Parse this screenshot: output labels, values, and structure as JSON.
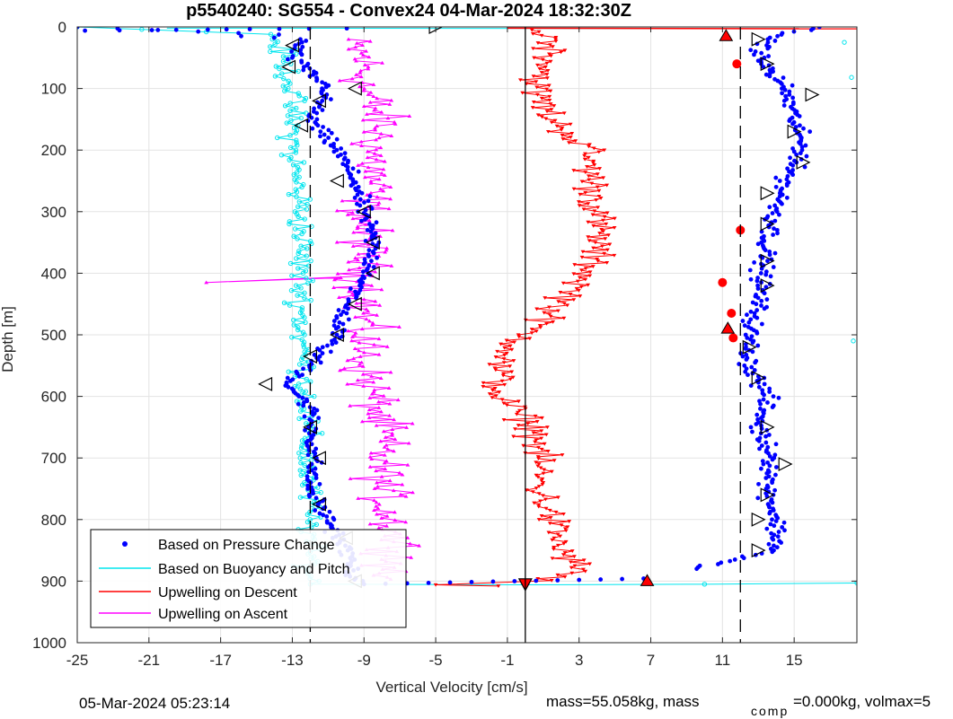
{
  "footer": {
    "timestamp": "05-Mar-2024 05:23:14",
    "mass_text": "mass=55.058kg, mass",
    "comp_sub": "comp",
    "comp_text": "=0.000kg, volmax=5"
  },
  "chart_data": {
    "type": "scatter",
    "title": "p5540240: SG554 - Convex24 04-Mar-2024 18:32:30Z",
    "xlabel": "Vertical Velocity [cm/s]",
    "ylabel": "Depth [m]",
    "xlim": [
      -25,
      18.5
    ],
    "ylim": [
      0,
      1000
    ],
    "y_reversed": true,
    "xticks": [
      -25,
      -21,
      -17,
      -13,
      -9,
      -5,
      -1,
      3,
      7,
      11,
      15
    ],
    "yticks": [
      0,
      100,
      200,
      300,
      400,
      500,
      600,
      700,
      800,
      900,
      1000
    ],
    "grid": true,
    "legend_position": "bottom-left",
    "reference_lines": {
      "solid_x": 0.0,
      "dashed_x": [
        -12,
        12
      ]
    },
    "series": [
      {
        "name": "Based on Pressure Change",
        "color": "#0000ff",
        "marker": "dot",
        "depth_profile_descent": [
          [
            0,
            -25
          ],
          [
            20,
            -12.5
          ],
          [
            50,
            -13
          ],
          [
            100,
            -11
          ],
          [
            150,
            -12
          ],
          [
            200,
            -10.5
          ],
          [
            250,
            -9.5
          ],
          [
            300,
            -9
          ],
          [
            350,
            -8.5
          ],
          [
            400,
            -8.7
          ],
          [
            450,
            -10
          ],
          [
            500,
            -10.5
          ],
          [
            550,
            -12
          ],
          [
            580,
            -13.2
          ],
          [
            620,
            -12
          ],
          [
            700,
            -11.8
          ],
          [
            750,
            -12
          ],
          [
            800,
            -11
          ],
          [
            850,
            -10
          ],
          [
            900,
            -9.5
          ]
        ],
        "depth_profile_ascent": [
          [
            900,
            6
          ],
          [
            850,
            14
          ],
          [
            800,
            14
          ],
          [
            750,
            13.5
          ],
          [
            700,
            13.8
          ],
          [
            650,
            13
          ],
          [
            600,
            13.5
          ],
          [
            550,
            12.5
          ],
          [
            500,
            12.5
          ],
          [
            450,
            13
          ],
          [
            400,
            13.2
          ],
          [
            350,
            13.5
          ],
          [
            300,
            14
          ],
          [
            250,
            14.5
          ],
          [
            200,
            15.5
          ],
          [
            150,
            15
          ],
          [
            100,
            14.5
          ],
          [
            50,
            13
          ],
          [
            20,
            13.5
          ],
          [
            0,
            16
          ]
        ]
      },
      {
        "name": "Based on Buoyancy and Pitch",
        "color": "#00e5ee",
        "marker": "circle-line",
        "depth_profile": [
          [
            0,
            -25
          ],
          [
            10,
            -14
          ],
          [
            50,
            -13.5
          ],
          [
            100,
            -13
          ],
          [
            200,
            -13
          ],
          [
            300,
            -12.5
          ],
          [
            400,
            -12.5
          ],
          [
            500,
            -12.5
          ],
          [
            600,
            -12.2
          ],
          [
            700,
            -12.2
          ],
          [
            800,
            -12
          ],
          [
            905,
            -12
          ],
          [
            905,
            5
          ],
          [
            905,
            18.5
          ]
        ]
      },
      {
        "name": "Upwelling on Descent",
        "color": "#ff0000",
        "marker": "triangle-down",
        "depth_profile": [
          [
            0,
            0.5
          ],
          [
            20,
            1.5
          ],
          [
            50,
            1.5
          ],
          [
            100,
            0.5
          ],
          [
            150,
            1.5
          ],
          [
            200,
            3.5
          ],
          [
            250,
            3.7
          ],
          [
            300,
            4
          ],
          [
            350,
            4.1
          ],
          [
            400,
            3.5
          ],
          [
            450,
            2
          ],
          [
            500,
            0
          ],
          [
            550,
            -1.5
          ],
          [
            600,
            -1.5
          ],
          [
            650,
            0.5
          ],
          [
            700,
            0.8
          ],
          [
            750,
            0.8
          ],
          [
            800,
            1.5
          ],
          [
            850,
            2
          ],
          [
            880,
            3
          ],
          [
            905,
            0.5
          ]
        ]
      },
      {
        "name": "Upwelling on Ascent",
        "color": "#ff00ff",
        "marker": "triangle-up",
        "depth_profile": [
          [
            20,
            -10
          ],
          [
            50,
            -9
          ],
          [
            100,
            -9
          ],
          [
            150,
            -8
          ],
          [
            200,
            -8.5
          ],
          [
            250,
            -8.5
          ],
          [
            300,
            -9
          ],
          [
            350,
            -9
          ],
          [
            400,
            -9
          ],
          [
            450,
            -9
          ],
          [
            500,
            -9
          ],
          [
            550,
            -9
          ],
          [
            600,
            -8.5
          ],
          [
            650,
            -8
          ],
          [
            700,
            -8
          ],
          [
            750,
            -8
          ],
          [
            800,
            -7.5
          ],
          [
            850,
            -7
          ],
          [
            900,
            -8
          ]
        ]
      }
    ],
    "extra_markers": {
      "triangle_markers_descent": [
        [
          30,
          -13
        ],
        [
          65,
          -13.2
        ],
        [
          100,
          -9.5
        ],
        [
          120,
          -11.5
        ],
        [
          160,
          -12.5
        ],
        [
          250,
          -10.5
        ],
        [
          300,
          -9
        ],
        [
          350,
          -8.5
        ],
        [
          400,
          -8.5
        ],
        [
          450,
          -9.5
        ],
        [
          500,
          -10.5
        ],
        [
          535,
          -12
        ],
        [
          580,
          -14.5
        ],
        [
          650,
          -12
        ],
        [
          700,
          -11.5
        ],
        [
          775,
          -11.5
        ],
        [
          830,
          -10
        ],
        [
          900,
          -9.5
        ]
      ],
      "triangle_markers_ascent": [
        [
          20,
          13
        ],
        [
          60,
          13.5
        ],
        [
          110,
          16
        ],
        [
          170,
          15
        ],
        [
          220,
          15.5
        ],
        [
          270,
          13.5
        ],
        [
          320,
          13.5
        ],
        [
          380,
          13.5
        ],
        [
          420,
          13.5
        ],
        [
          520,
          12.5
        ],
        [
          570,
          13
        ],
        [
          650,
          13.5
        ],
        [
          710,
          14.5
        ],
        [
          760,
          13.5
        ],
        [
          800,
          13
        ],
        [
          850,
          13
        ]
      ],
      "red_dots": [
        [
          60,
          11.8
        ],
        [
          330,
          12
        ],
        [
          415,
          11
        ],
        [
          465,
          11.5
        ],
        [
          505,
          11.6
        ]
      ],
      "red_triangles": [
        [
          15,
          11.2
        ],
        [
          490,
          11.3
        ],
        [
          900,
          6.8
        ]
      ],
      "surface_marker": [
        [
          0,
          -5
        ]
      ],
      "bottom_marker": [
        [
          905,
          0
        ]
      ]
    }
  }
}
